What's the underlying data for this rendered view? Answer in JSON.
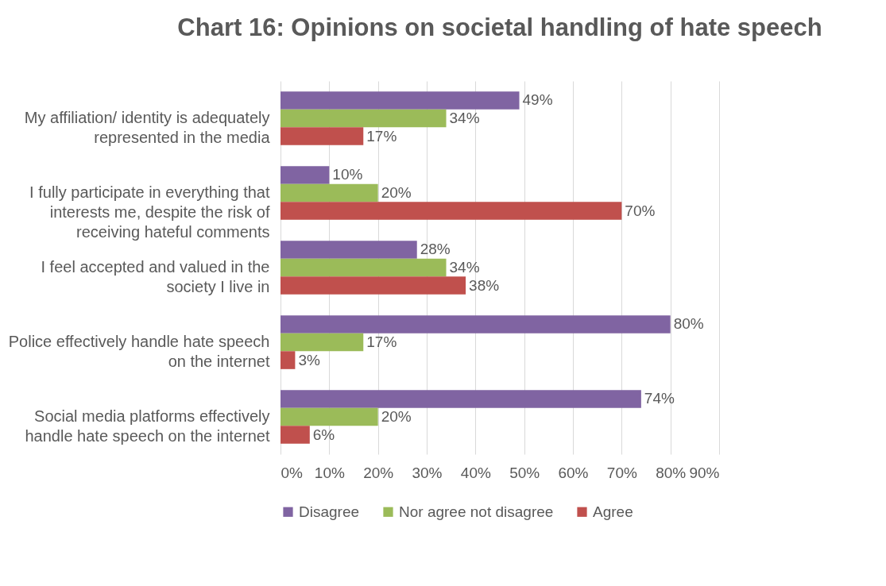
{
  "chart_data": {
    "type": "bar",
    "orientation": "horizontal",
    "title": "Chart 16: Opinions on societal handling of hate speech",
    "categories": [
      "My affiliation/ identity is adequately represented in the media",
      "I fully participate in everything that interests me, despite the risk of receiving hateful comments",
      "I feel accepted and valued in the society I live in",
      "Police effectively handle hate speech on the internet",
      "Social media platforms effectively handle hate speech on the internet"
    ],
    "series": [
      {
        "name": "Disagree",
        "color": "#8064a2",
        "values": [
          49,
          10,
          28,
          80,
          74
        ],
        "value_labels": [
          "49%",
          "10%",
          "28%",
          "80%",
          "74%"
        ]
      },
      {
        "name": "Nor agree not disagree",
        "color": "#9bbb59",
        "values": [
          34,
          20,
          34,
          17,
          20
        ],
        "value_labels": [
          "34%",
          "20%",
          "34%",
          "17%",
          "20%"
        ]
      },
      {
        "name": "Agree",
        "color": "#c0504d",
        "values": [
          17,
          70,
          38,
          3,
          6
        ],
        "value_labels": [
          "17%",
          "70%",
          "38%",
          "3%",
          "6%"
        ]
      }
    ],
    "xlim": [
      0,
      90
    ],
    "xticks": [
      {
        "value": 0,
        "label": "0%"
      },
      {
        "value": 10,
        "label": "10%"
      },
      {
        "value": 20,
        "label": "20%"
      },
      {
        "value": 30,
        "label": "30%"
      },
      {
        "value": 40,
        "label": "40%"
      },
      {
        "value": 50,
        "label": "50%"
      },
      {
        "value": 60,
        "label": "60%"
      },
      {
        "value": 70,
        "label": "70%"
      },
      {
        "value": 80,
        "label": "80%"
      },
      {
        "value": 90,
        "label": "90%"
      }
    ],
    "grid": "x",
    "legend": "bottom"
  }
}
